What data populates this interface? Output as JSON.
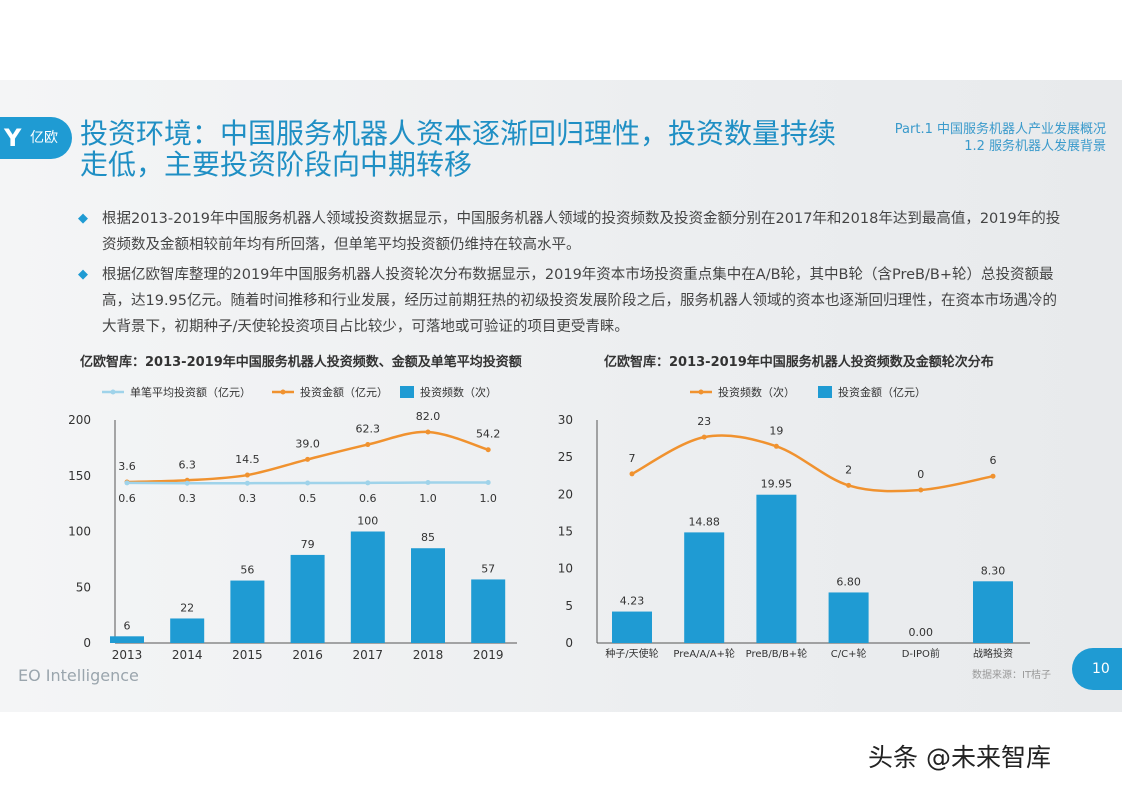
{
  "header": {
    "logo_text": "亿欧",
    "title": "投资环境：中国服务机器人资本逐渐回归理性，投资数量持续走低，主要投资阶段向中期转移",
    "part": "Part.1 中国服务机器人产业发展概况",
    "section": "1.2 服务机器人发展背景"
  },
  "bullets": [
    "根据2013-2019年中国服务机器人领域投资数据显示，中国服务机器人领域的投资频数及投资金额分别在2017年和2018年达到最高值，2019年的投资频数及金额相较前年均有所回落，但单笔平均投资额仍维持在较高水平。",
    "根据亿欧智库整理的2019年中国服务机器人投资轮次分布数据显示，2019年资本市场投资重点集中在A/B轮，其中B轮（含PreB/B+轮）总投资额最高，达19.95亿元。随着时间推移和行业发展，经历过前期狂热的初级投资发展阶段之后，服务机器人领域的资本也逐渐回归理性，在资本市场遇冷的大背景下，初期种子/天使轮投资项目占比较少，可落地或可验证的项目更受青睐。"
  ],
  "footer": {
    "brand": "EO Intelligence",
    "source": "数据来源：IT桔子",
    "page": "10",
    "watermark": "头条 @未来智库"
  },
  "colors": {
    "bar": "#1f9bd3",
    "line": "#f0922f",
    "avg": "#9fd3ea",
    "accent": "#1f9bd3"
  },
  "chart_data": [
    {
      "type": "bar+line",
      "title": "亿欧智库：2013-2019年中国服务机器人投资频数、金额及单笔平均投资额",
      "categories": [
        "2013",
        "2014",
        "2015",
        "2016",
        "2017",
        "2018",
        "2019"
      ],
      "ylim": [
        0,
        200
      ],
      "yticks": [
        "0",
        "50",
        "100",
        "150",
        "200"
      ],
      "legend": "top",
      "series": [
        {
          "name": "单笔平均投资额（亿元）",
          "type": "line",
          "values": [
            0.6,
            0.3,
            0.3,
            0.5,
            0.6,
            1.0,
            1.0
          ],
          "labels": [
            "0.6",
            "0.3",
            "0.3",
            "0.5",
            "0.6",
            "1.0",
            "1.0"
          ]
        },
        {
          "name": "投资金额（亿元）",
          "type": "line",
          "values": [
            3.6,
            6.3,
            14.5,
            39.0,
            62.3,
            82.0,
            54.2
          ],
          "labels": [
            "3.6",
            "6.3",
            "14.5",
            "39.0",
            "62.3",
            "82.0",
            "54.2"
          ]
        },
        {
          "name": "投资频数（次）",
          "type": "bar",
          "values": [
            6,
            22,
            56,
            79,
            100,
            85,
            57
          ],
          "labels": [
            "6",
            "22",
            "56",
            "79",
            "100",
            "85",
            "57"
          ]
        }
      ]
    },
    {
      "type": "bar+line",
      "title": "亿欧智库：2013-2019年中国服务机器人投资频数及金额轮次分布",
      "categories": [
        "种子/天使轮",
        "PreA/A/A+轮",
        "PreB/B/B+轮",
        "C/C+轮",
        "D-IPO前",
        "战略投资"
      ],
      "ylim": [
        0,
        30
      ],
      "yticks": [
        "0",
        "5",
        "10",
        "15",
        "20",
        "25",
        "30"
      ],
      "legend": "top",
      "series": [
        {
          "name": "投资频数（次）",
          "type": "line",
          "values": [
            7,
            23,
            19,
            2,
            0,
            6
          ],
          "labels": [
            "7",
            "23",
            "19",
            "2",
            "0",
            "6"
          ]
        },
        {
          "name": "投资金额（亿元）",
          "type": "bar",
          "values": [
            4.23,
            14.88,
            19.95,
            6.8,
            0.0,
            8.3
          ],
          "labels": [
            "4.23",
            "14.88",
            "19.95",
            "6.80",
            "0.00",
            "8.30"
          ]
        }
      ]
    }
  ]
}
